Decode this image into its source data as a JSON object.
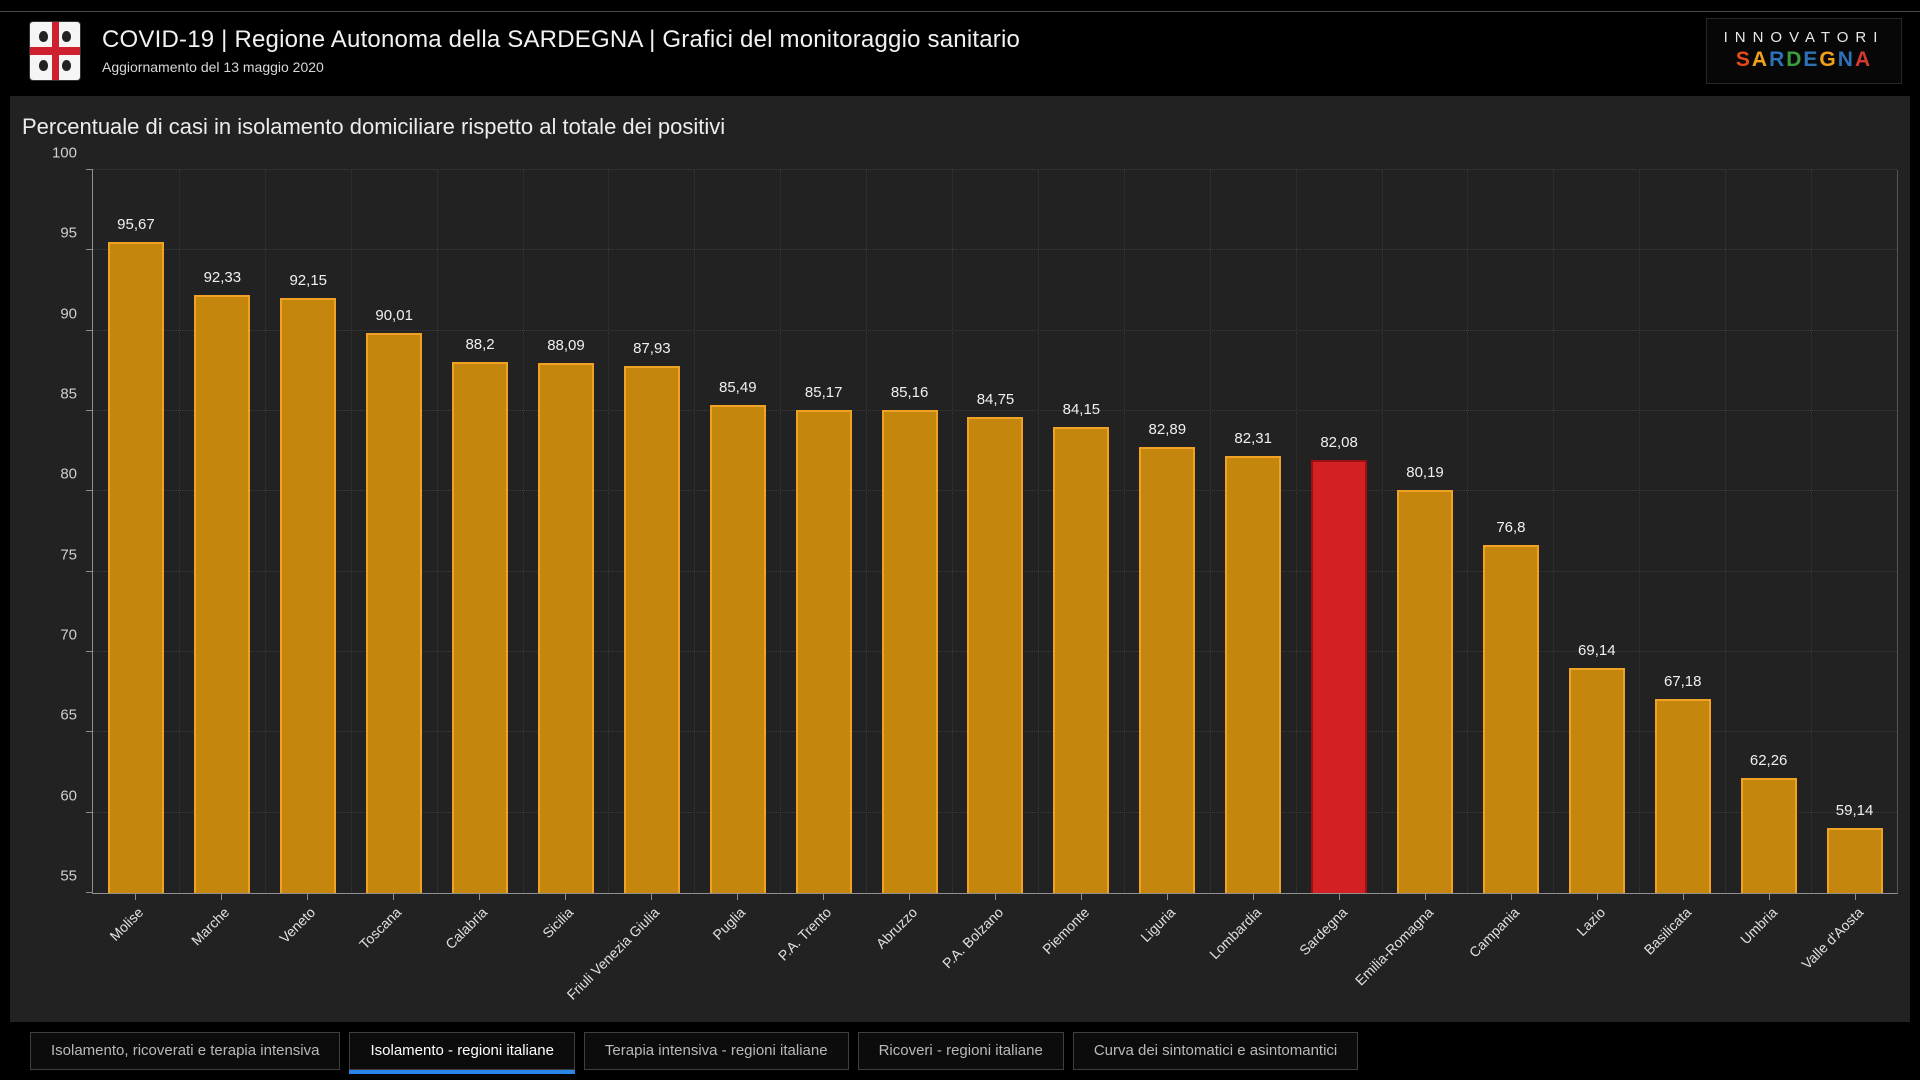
{
  "header": {
    "title": "COVID-19 | Regione Autonoma della SARDEGNA | Grafici del monitoraggio sanitario",
    "subtitle": "Aggiornamento del 13 maggio 2020",
    "logo": "sardegna-coat-of-arms",
    "brand": {
      "line1": "INNOVATORI",
      "line2_letters": [
        {
          "ch": "S",
          "color": "#e84b1a"
        },
        {
          "ch": "A",
          "color": "#f2a21a"
        },
        {
          "ch": "R",
          "color": "#2d72b8"
        },
        {
          "ch": "D",
          "color": "#3a9e3d"
        },
        {
          "ch": "E",
          "color": "#2d72b8"
        },
        {
          "ch": "G",
          "color": "#f2a21a"
        },
        {
          "ch": "N",
          "color": "#2d72b8"
        },
        {
          "ch": "A",
          "color": "#d43a2f"
        }
      ]
    }
  },
  "chart_data": {
    "type": "bar",
    "title": "Percentuale di casi in isolamento domiciliare rispetto al totale dei positivi",
    "categories": [
      "Molise",
      "Marche",
      "Veneto",
      "Toscana",
      "Calabria",
      "Sicilia",
      "Friuli Venezia Giulia",
      "Puglia",
      "P.A. Trento",
      "Abruzzo",
      "P.A. Bolzano",
      "Piemonte",
      "Liguria",
      "Lombardia",
      "Sardegna",
      "Emilia-Romagna",
      "Campania",
      "Lazio",
      "Basilicata",
      "Umbria",
      "Valle d'Aosta"
    ],
    "values": [
      95.67,
      92.33,
      92.15,
      90.01,
      88.2,
      88.09,
      87.93,
      85.49,
      85.17,
      85.16,
      84.75,
      84.15,
      82.89,
      82.31,
      82.08,
      80.19,
      76.8,
      69.14,
      67.18,
      62.26,
      59.14
    ],
    "value_labels": [
      "95,67",
      "92,33",
      "92,15",
      "90,01",
      "88,2",
      "88,09",
      "87,93",
      "85,49",
      "85,17",
      "85,16",
      "84,75",
      "84,15",
      "82,89",
      "82,31",
      "82,08",
      "80,19",
      "76,8",
      "69,14",
      "67,18",
      "62,26",
      "59,14"
    ],
    "highlight_category": "Sardegna",
    "xlabel": "",
    "ylabel": "",
    "ylim": [
      55,
      100
    ],
    "yticks": [
      55,
      60,
      65,
      70,
      75,
      80,
      85,
      90,
      95,
      100
    ],
    "grid": "dotted",
    "legend": "none",
    "bar_color": "#c5860e",
    "bar_border": "#f0a224",
    "highlight_color": "#d41f23",
    "highlight_border": "#9c1013"
  },
  "tabs": [
    {
      "label": "Isolamento, ricoverati e terapia intensiva",
      "active": false
    },
    {
      "label": "Isolamento - regioni italiane",
      "active": true
    },
    {
      "label": "Terapia intensiva - regioni italiane",
      "active": false
    },
    {
      "label": "Ricoveri - regioni italiane",
      "active": false
    },
    {
      "label": "Curva dei sintomatici e asintomantici",
      "active": false
    }
  ],
  "colors": {
    "accent_blue": "#2a85e6",
    "panel_bg": "#222222",
    "page_bg": "#000000"
  }
}
